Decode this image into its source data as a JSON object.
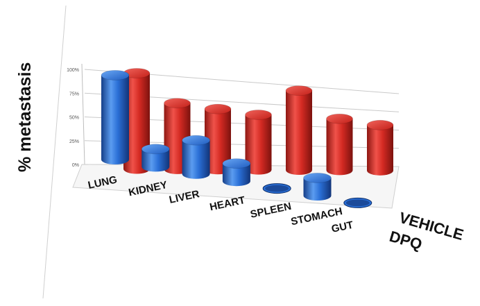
{
  "chart_data": {
    "type": "bar",
    "style": "3d-cylinder",
    "categories": [
      "LUNG",
      "KIDNEY",
      "LIVER",
      "HEART",
      "SPLEEN",
      "STOMACH",
      "GUT"
    ],
    "series": [
      {
        "name": "VEHICLE",
        "color": "#d42a23",
        "values": [
          100,
          70,
          65,
          60,
          88,
          58,
          52
        ]
      },
      {
        "name": "DPQ",
        "color": "#2a6fd6",
        "values": [
          95,
          20,
          38,
          20,
          0,
          20,
          0
        ]
      }
    ],
    "ylabel": "% metastasis",
    "yticks": [
      "0%",
      "25%",
      "50%",
      "75%",
      "100%"
    ],
    "ylim": [
      0,
      100
    ],
    "grid": true,
    "legend": "bottom-right"
  }
}
